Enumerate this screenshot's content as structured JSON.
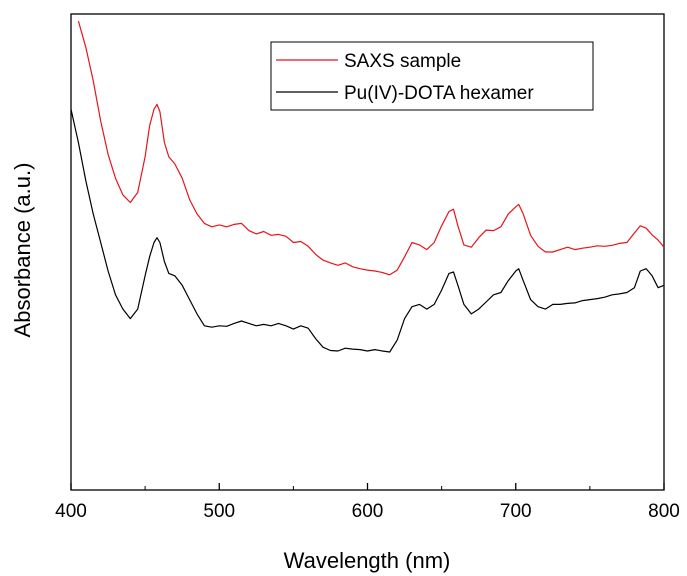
{
  "chart_data": {
    "type": "line",
    "xlabel": "Wavelength (nm)",
    "ylabel": "Absorbance (a.u.)",
    "xlim": [
      400,
      800
    ],
    "ylim": [
      0,
      1
    ],
    "x_ticks": [
      "400",
      "500",
      "600",
      "700",
      "800"
    ],
    "grid": false,
    "legend_position": "top-right",
    "series": [
      {
        "name": "SAXS sample",
        "color": "#e8141c",
        "x": [
          405,
          410,
          415,
          420,
          425,
          430,
          435,
          440,
          445,
          450,
          453,
          456,
          458,
          460,
          463,
          466,
          470,
          475,
          480,
          485,
          490,
          495,
          500,
          505,
          510,
          515,
          520,
          525,
          530,
          535,
          540,
          545,
          550,
          555,
          560,
          565,
          570,
          575,
          580,
          585,
          590,
          595,
          600,
          605,
          610,
          615,
          620,
          625,
          630,
          635,
          640,
          645,
          650,
          655,
          658,
          661,
          665,
          670,
          675,
          680,
          685,
          690,
          695,
          700,
          702,
          705,
          710,
          715,
          720,
          725,
          730,
          735,
          740,
          745,
          750,
          755,
          760,
          765,
          770,
          775,
          780,
          784,
          788,
          792,
          796,
          800
        ],
        "y": [
          0.985,
          0.93,
          0.86,
          0.775,
          0.705,
          0.655,
          0.62,
          0.604,
          0.625,
          0.7,
          0.765,
          0.8,
          0.81,
          0.795,
          0.73,
          0.7,
          0.685,
          0.655,
          0.61,
          0.58,
          0.56,
          0.553,
          0.557,
          0.553,
          0.558,
          0.56,
          0.545,
          0.538,
          0.543,
          0.535,
          0.537,
          0.533,
          0.52,
          0.522,
          0.512,
          0.495,
          0.483,
          0.477,
          0.472,
          0.477,
          0.469,
          0.465,
          0.462,
          0.46,
          0.457,
          0.452,
          0.462,
          0.49,
          0.52,
          0.515,
          0.505,
          0.52,
          0.555,
          0.585,
          0.59,
          0.555,
          0.515,
          0.51,
          0.53,
          0.546,
          0.545,
          0.553,
          0.58,
          0.595,
          0.6,
          0.58,
          0.535,
          0.512,
          0.5,
          0.5,
          0.505,
          0.51,
          0.505,
          0.508,
          0.51,
          0.513,
          0.512,
          0.514,
          0.518,
          0.52,
          0.54,
          0.555,
          0.55,
          0.536,
          0.525,
          0.51
        ]
      },
      {
        "name": "Pu(IV)-DOTA hexamer",
        "color": "#000000",
        "x": [
          400,
          405,
          410,
          415,
          420,
          425,
          430,
          435,
          440,
          445,
          450,
          453,
          456,
          458,
          460,
          463,
          466,
          470,
          475,
          480,
          485,
          490,
          495,
          500,
          505,
          510,
          515,
          520,
          525,
          530,
          535,
          540,
          545,
          550,
          555,
          560,
          565,
          570,
          575,
          580,
          585,
          590,
          595,
          600,
          605,
          610,
          615,
          620,
          625,
          630,
          635,
          640,
          645,
          650,
          655,
          658,
          661,
          665,
          670,
          675,
          680,
          685,
          690,
          695,
          700,
          702,
          705,
          710,
          715,
          720,
          725,
          730,
          735,
          740,
          745,
          750,
          755,
          760,
          765,
          770,
          775,
          780,
          784,
          788,
          792,
          796,
          800
        ],
        "y": [
          0.8,
          0.73,
          0.65,
          0.58,
          0.52,
          0.46,
          0.41,
          0.38,
          0.36,
          0.38,
          0.45,
          0.49,
          0.52,
          0.53,
          0.52,
          0.48,
          0.455,
          0.45,
          0.43,
          0.4,
          0.37,
          0.345,
          0.342,
          0.345,
          0.344,
          0.35,
          0.355,
          0.35,
          0.345,
          0.348,
          0.345,
          0.35,
          0.345,
          0.338,
          0.345,
          0.34,
          0.318,
          0.3,
          0.293,
          0.292,
          0.298,
          0.296,
          0.295,
          0.292,
          0.295,
          0.292,
          0.29,
          0.315,
          0.36,
          0.385,
          0.39,
          0.38,
          0.39,
          0.42,
          0.455,
          0.458,
          0.43,
          0.39,
          0.37,
          0.38,
          0.395,
          0.41,
          0.415,
          0.44,
          0.46,
          0.465,
          0.44,
          0.4,
          0.385,
          0.38,
          0.39,
          0.39,
          0.392,
          0.393,
          0.398,
          0.4,
          0.402,
          0.405,
          0.41,
          0.412,
          0.415,
          0.425,
          0.46,
          0.465,
          0.45,
          0.425,
          0.43
        ]
      }
    ]
  }
}
